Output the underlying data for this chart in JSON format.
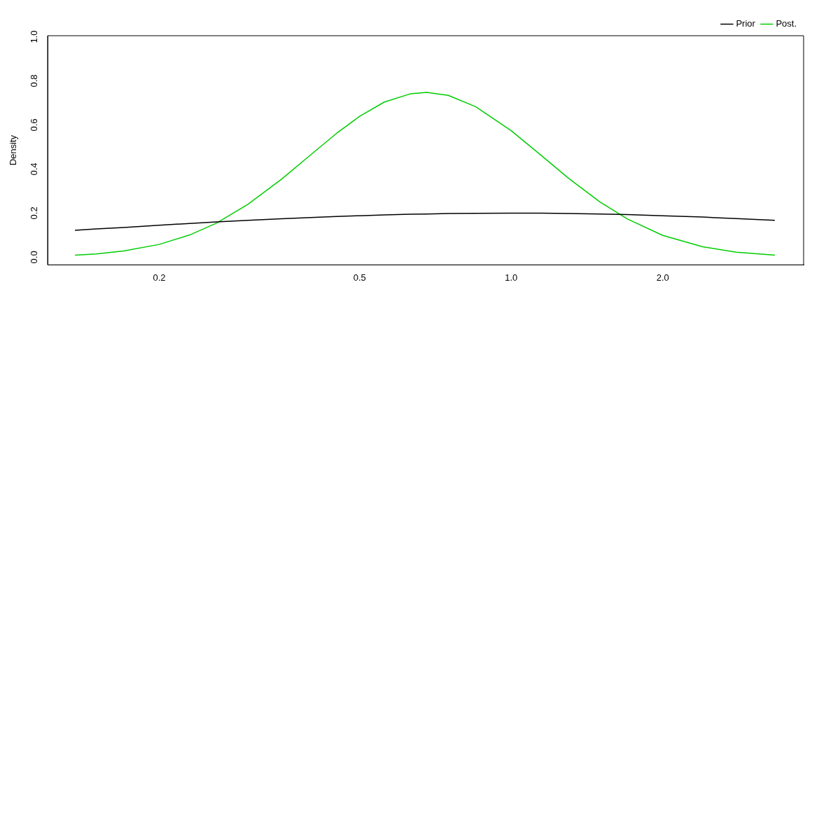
{
  "chart_data": {
    "type": "line",
    "ylabel": "Density",
    "log": "x",
    "legend": "top right",
    "grid": false,
    "xlim": [
      0.12,
      3.81
    ],
    "xticks": [
      {
        "value": 0.2,
        "label": "0.2"
      },
      {
        "value": 0.5,
        "label": "0.5"
      },
      {
        "value": 1,
        "label": "1.0"
      },
      {
        "value": 2,
        "label": "2.0"
      }
    ],
    "ylim": [
      -0.035,
      1.005
    ],
    "yticks": [
      {
        "value": 0,
        "label": "0.0"
      },
      {
        "value": 0.2,
        "label": "0.2"
      },
      {
        "value": 0.4,
        "label": "0.4"
      },
      {
        "value": 0.6,
        "label": "0.6"
      },
      {
        "value": 0.8,
        "label": "0.8"
      },
      {
        "value": 1,
        "label": "1.0"
      }
    ],
    "x": [
      0.136,
      0.15,
      0.17,
      0.2,
      0.23,
      0.26,
      0.3,
      0.35,
      0.4,
      0.45,
      0.5,
      0.56,
      0.63,
      0.68,
      0.75,
      0.85,
      1.0,
      1.15,
      1.3,
      1.5,
      1.7,
      2.0,
      2.4,
      2.8,
      3.34
    ],
    "series": [
      {
        "name": "Prior",
        "color": "#000000",
        "values": [
          0.122,
          0.128,
          0.135,
          0.145,
          0.153,
          0.16,
          0.167,
          0.174,
          0.18,
          0.185,
          0.188,
          0.192,
          0.195,
          0.196,
          0.198,
          0.199,
          0.2,
          0.2,
          0.198,
          0.196,
          0.193,
          0.188,
          0.182,
          0.175,
          0.167
        ]
      },
      {
        "name": "Post.",
        "color": "#00cd00",
        "values": [
          0.009,
          0.015,
          0.028,
          0.058,
          0.101,
          0.155,
          0.24,
          0.354,
          0.465,
          0.562,
          0.639,
          0.704,
          0.741,
          0.748,
          0.734,
          0.683,
          0.574,
          0.46,
          0.358,
          0.251,
          0.174,
          0.099,
          0.047,
          0.023,
          0.009
        ]
      }
    ]
  }
}
